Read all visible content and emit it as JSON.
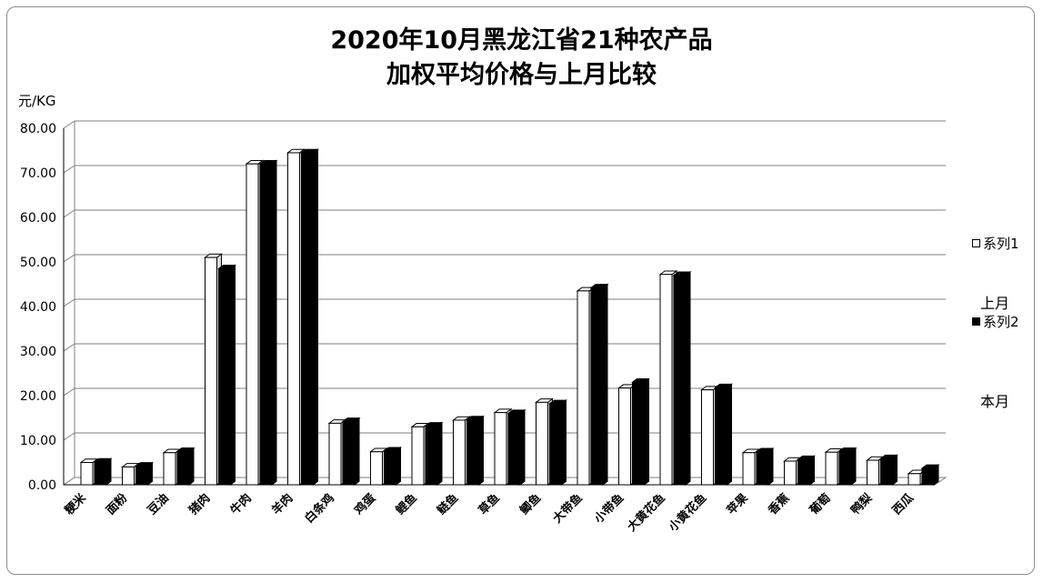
{
  "chart_data": {
    "type": "bar",
    "title_line1": "2020年10月黑龙江省21种农产品",
    "title_line2": "加权平均价格与上月比较",
    "ylabel": "元/KG",
    "ylim": [
      0,
      80
    ],
    "yticks": [
      "0.00",
      "10.00",
      "20.00",
      "30.00",
      "40.00",
      "50.00",
      "60.00",
      "70.00",
      "80.00"
    ],
    "categories": [
      "粳米",
      "面粉",
      "豆油",
      "猪肉",
      "牛肉",
      "羊肉",
      "白条鸡",
      "鸡蛋",
      "鲤鱼",
      "鲢鱼",
      "草鱼",
      "鲫鱼",
      "大带鱼",
      "小带鱼",
      "大黄花鱼",
      "小黄花鱼",
      "苹果",
      "香蕉",
      "葡萄",
      "鸭梨",
      "西瓜"
    ],
    "series": [
      {
        "name": "系列1",
        "label": "上月",
        "color": "#ffffff",
        "values": [
          5.0,
          4.0,
          7.2,
          51.0,
          72.0,
          74.5,
          13.8,
          7.4,
          13.0,
          14.5,
          16.2,
          18.5,
          43.5,
          21.7,
          47.2,
          21.3,
          7.2,
          5.3,
          7.3,
          5.5,
          2.5
        ]
      },
      {
        "name": "系列2",
        "label": "本月",
        "color": "#000000",
        "values": [
          5.1,
          4.2,
          7.5,
          48.5,
          72.0,
          74.5,
          14.2,
          7.6,
          13.2,
          14.6,
          16.0,
          18.2,
          44.2,
          23.0,
          47.0,
          21.8,
          7.4,
          5.7,
          7.5,
          5.9,
          3.7
        ]
      }
    ],
    "grid": true,
    "legend": "right"
  }
}
